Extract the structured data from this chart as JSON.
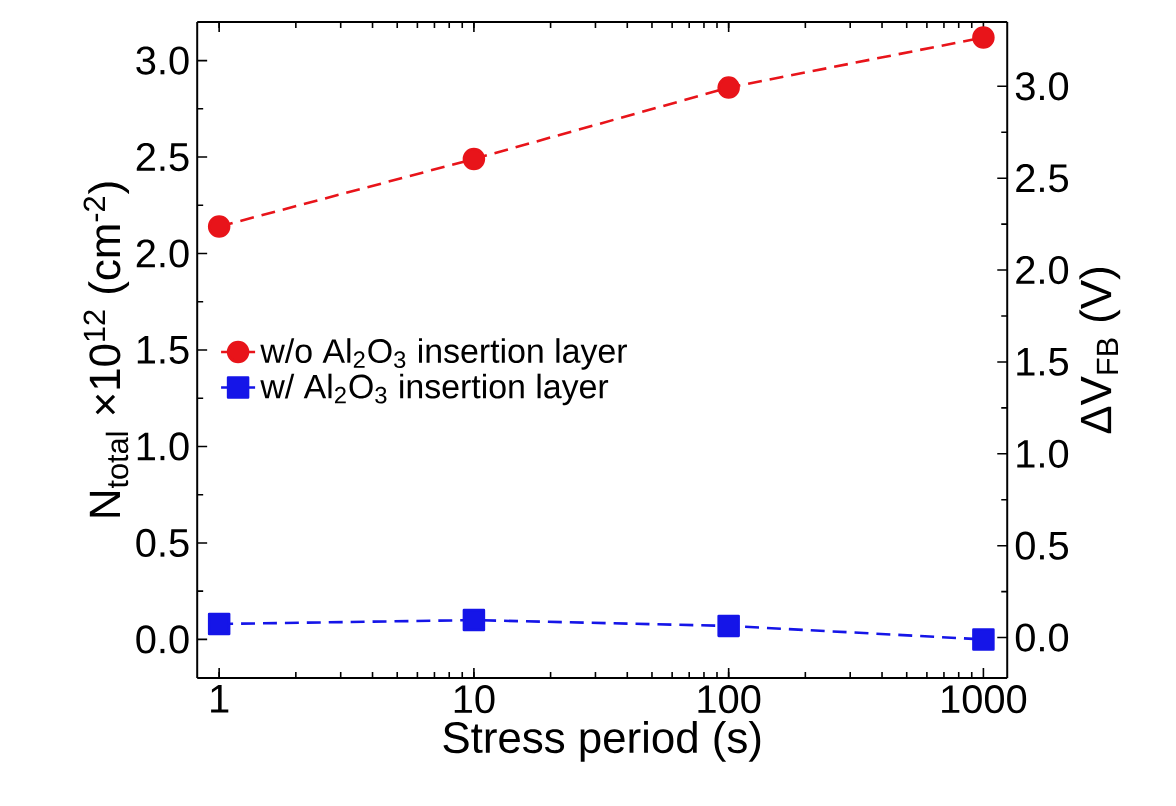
{
  "chart_data": {
    "type": "line",
    "xlabel": "Stress period (s)",
    "ylabel": "N$_{total}$ ×10$^{12}$ (cm$^{-2}$)",
    "y2label": "ΔV$_{FB}$ (V)",
    "x": [
      1,
      10,
      100,
      1000
    ],
    "log": "x",
    "xlim": [
      0.82,
      1240
    ],
    "xticks": [
      1,
      10,
      100,
      1000
    ],
    "ylim": [
      -0.2,
      3.2
    ],
    "yticks": [
      {
        "value": 0,
        "label": "0.0"
      },
      0.5,
      {
        "value": 1,
        "label": "1.0"
      },
      1.5,
      {
        "value": 2,
        "label": "2.0"
      },
      2.5,
      {
        "value": 3,
        "label": "3.0"
      }
    ],
    "y2lim": [
      -0.22,
      3.35
    ],
    "y2ticks": [
      {
        "value": 0,
        "label": "0.0"
      },
      0.5,
      {
        "value": 1,
        "label": "1.0"
      },
      1.5,
      {
        "value": 2,
        "label": "2.0"
      },
      2.5,
      {
        "value": 3,
        "label": "3.0"
      }
    ],
    "legend": "left",
    "line_style": "dashed",
    "grid": false,
    "series": [
      {
        "name": "w/o Al$_{2}$O$_{3}$ insertion layer",
        "color": "#e8141a",
        "marker": "circle",
        "values": [
          2.14,
          2.49,
          2.86,
          3.12
        ]
      },
      {
        "name": "w/ Al$_{2}$O$_{3}$ insertion layer",
        "color": "#1515e8",
        "marker": "square",
        "values": [
          0.08,
          0.1,
          0.07,
          0.0
        ]
      }
    ]
  }
}
